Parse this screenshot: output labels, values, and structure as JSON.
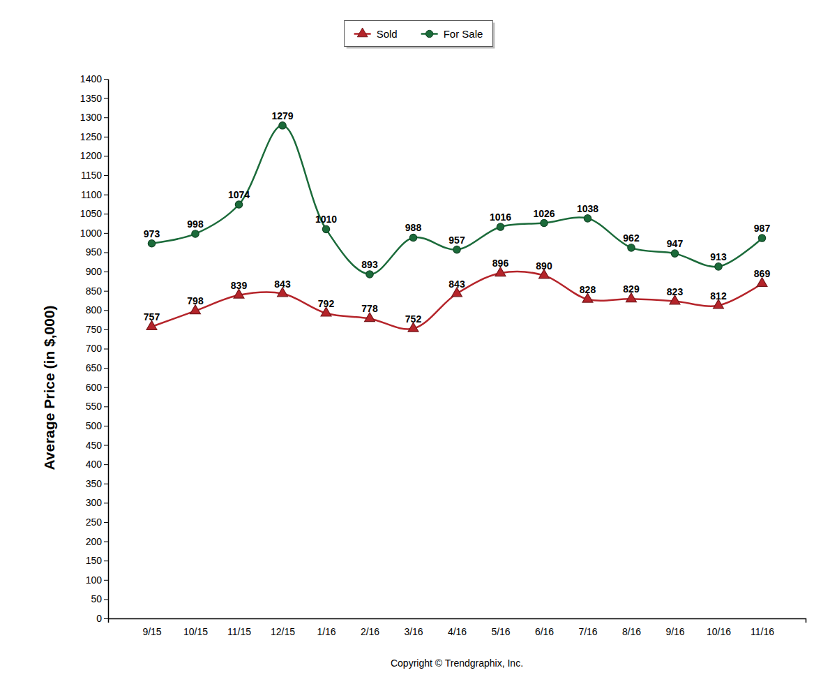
{
  "chart_data": {
    "type": "line",
    "y_label": "Average Price (in $,000)",
    "annotations": [
      "Copyright © Trendgraphix, Inc."
    ],
    "categories": [
      "9/15",
      "10/15",
      "11/15",
      "12/15",
      "1/16",
      "2/16",
      "3/16",
      "4/16",
      "5/16",
      "6/16",
      "7/16",
      "8/16",
      "9/16",
      "10/16",
      "11/16"
    ],
    "series": [
      {
        "name": "Sold",
        "color": "#b5242a",
        "marker": "triangle",
        "line_style": "solid",
        "values": [
          757,
          798,
          839,
          843,
          792,
          778,
          752,
          843,
          896,
          890,
          828,
          829,
          823,
          812,
          869
        ]
      },
      {
        "name": "For Sale",
        "color": "#1b6b3a",
        "marker": "circle",
        "line_style": "solid",
        "values": [
          973,
          998,
          1074,
          1279,
          1010,
          893,
          988,
          957,
          1016,
          1026,
          1038,
          962,
          947,
          913,
          987
        ]
      }
    ],
    "ylim": [
      0,
      1400
    ],
    "yticks": [
      0,
      50,
      100,
      150,
      200,
      250,
      300,
      350,
      400,
      450,
      500,
      550,
      600,
      650,
      700,
      750,
      800,
      850,
      900,
      950,
      1000,
      1050,
      1100,
      1150,
      1200,
      1250,
      1300,
      1350,
      1400
    ],
    "grid": false,
    "legend": "top",
    "data_labels": true
  }
}
